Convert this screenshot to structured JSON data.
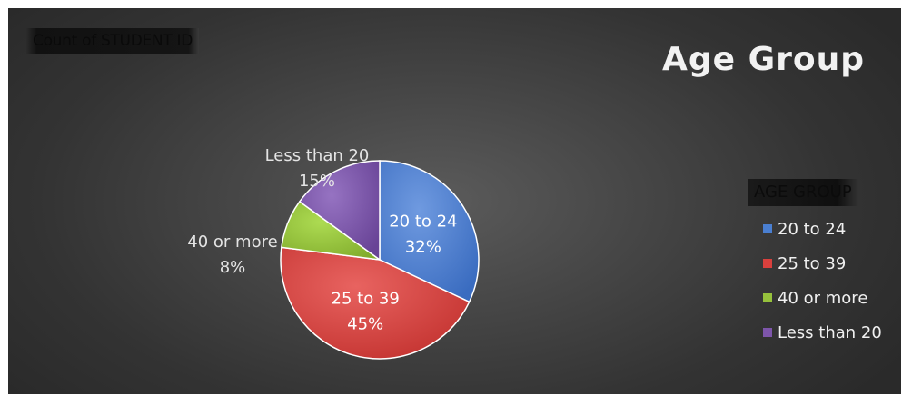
{
  "field_button": "Count of STUDENT ID",
  "chart_data": {
    "type": "pie",
    "title": "Age Group",
    "legend_title": "AGE GROUP",
    "legend_position": "right",
    "categories": [
      "20 to 24",
      "25 to 39",
      "40 or more",
      "Less than 20"
    ],
    "values": [
      32,
      45,
      8,
      15
    ],
    "value_labels": [
      "32%",
      "45%",
      "8%",
      "15%"
    ],
    "colors": [
      "#4a7fd1",
      "#d9403d",
      "#96c13c",
      "#7d55aa"
    ]
  }
}
